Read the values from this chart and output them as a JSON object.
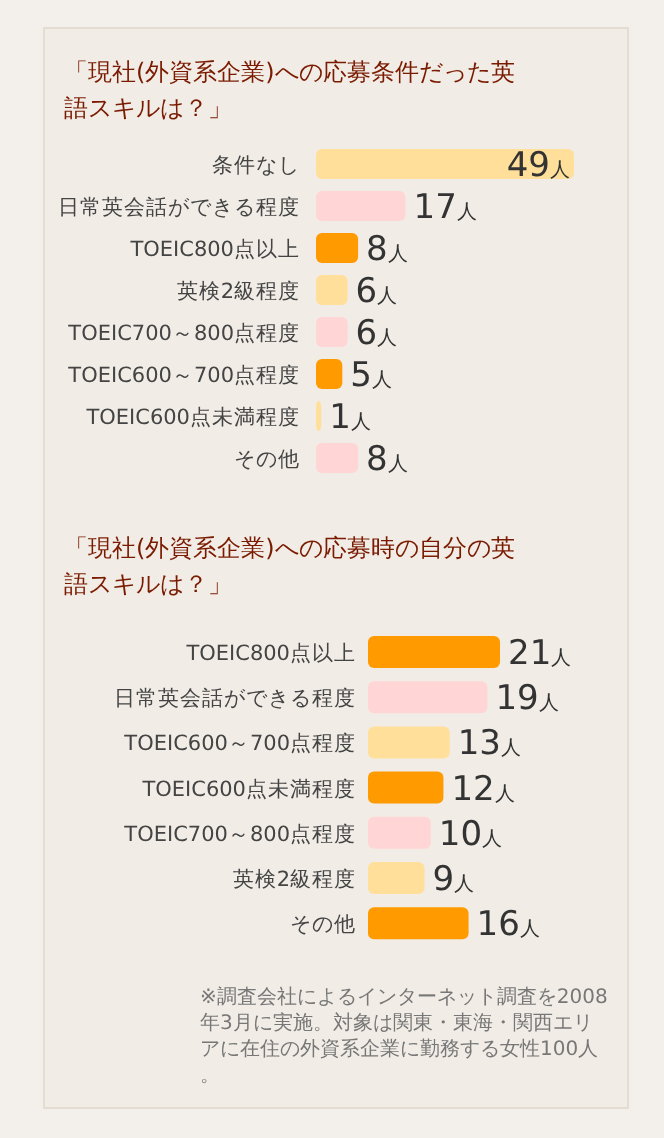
{
  "chart_data": [
    {
      "type": "bar",
      "orientation": "horizontal",
      "title": "「現社(外資系企業)への応募条件だった英語スキルは？」",
      "categories": [
        "条件なし",
        "日常英会話ができる程度",
        "TOEIC800点以上",
        "英検2級程度",
        "TOEIC700～800点程度",
        "TOEIC600～700点程度",
        "TOEIC600点未満程度",
        "その他"
      ],
      "values": [
        49,
        17,
        8,
        6,
        6,
        5,
        1,
        8
      ],
      "colors": [
        "#ffdf99",
        "#ffd5d5",
        "#ff9a00",
        "#ffdf99",
        "#ffd5d5",
        "#ff9a00",
        "#ffdf99",
        "#ffd5d5"
      ],
      "value_labels": [
        "49人",
        "17人",
        "8人",
        "6人",
        "6人",
        "5人",
        "1人",
        "8人"
      ]
    },
    {
      "type": "bar",
      "orientation": "horizontal",
      "title": "「現社(外資系企業)への応募時の自分の英語スキルは？」",
      "categories": [
        "TOEIC800点以上",
        "日常英会話ができる程度",
        "TOEIC600～700点程度",
        "TOEIC600点未満程度",
        "TOEIC700～800点程度",
        "英検2級程度",
        "その他"
      ],
      "values": [
        21,
        19,
        13,
        12,
        10,
        9,
        16
      ],
      "colors": [
        "#ff9a00",
        "#ffd5d5",
        "#ffdf99",
        "#ff9a00",
        "#ffd5d5",
        "#ffdf99",
        "#ff9a00"
      ],
      "value_labels": [
        "21人",
        "19人",
        "13人",
        "12人",
        "10人",
        "9人",
        "16人"
      ],
      "annotations": [
        "※調査会社によるインターネット調査を2008年3月に実施。対象は関東・東海・関西エリアに在住の外資系企業に勤務する女性100人。"
      ]
    }
  ]
}
